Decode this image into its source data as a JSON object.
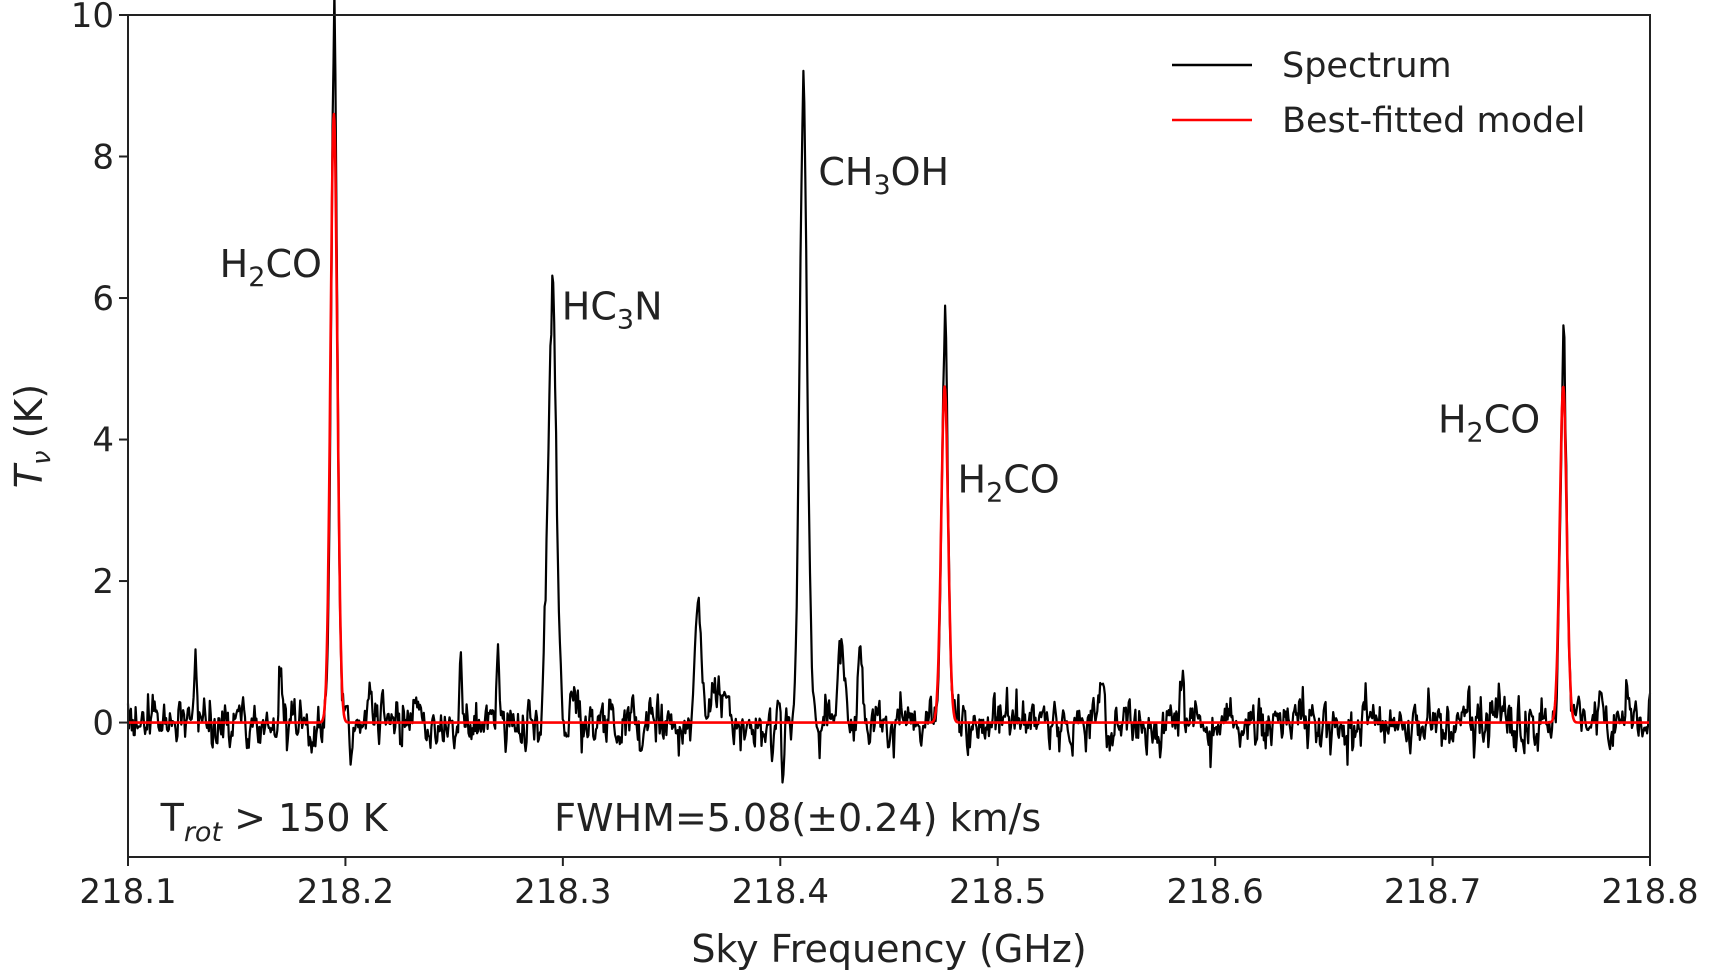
{
  "chart_data": {
    "type": "line",
    "title": "",
    "xlabel": "Sky Frequency (GHz)",
    "ylabel": {
      "symbol": "T",
      "subscript": "ν",
      "unit": " (K)"
    },
    "xlim": [
      218.1,
      218.8
    ],
    "ylim": [
      -1.9,
      10
    ],
    "xticks": [
      218.1,
      218.2,
      218.3,
      218.4,
      218.5,
      218.6,
      218.7,
      218.8
    ],
    "xtick_labels": [
      "218.1",
      "218.2",
      "218.3",
      "218.4",
      "218.5",
      "218.6",
      "218.7",
      "218.8"
    ],
    "yticks": [
      0,
      2,
      4,
      6,
      8,
      10
    ],
    "ytick_labels": [
      "0",
      "2",
      "4",
      "6",
      "8",
      "10"
    ],
    "grid": false,
    "legend": {
      "position": "top-right"
    },
    "series": [
      {
        "name": "Spectrum",
        "color": "#000000",
        "noise_rms": 0.15,
        "peaks": [
          {
            "x": 218.131,
            "y": 0.9,
            "fwhm_ghz": 0.0012
          },
          {
            "x": 218.17,
            "y": 0.75,
            "fwhm_ghz": 0.0014
          },
          {
            "x": 218.1947,
            "y": 9.35,
            "fwhm_ghz": 0.0032
          },
          {
            "x": 218.253,
            "y": 1.1,
            "fwhm_ghz": 0.0013
          },
          {
            "x": 218.27,
            "y": 0.8,
            "fwhm_ghz": 0.0015
          },
          {
            "x": 218.2949,
            "y": 5.75,
            "fwhm_ghz": 0.0045
          },
          {
            "x": 218.362,
            "y": 1.35,
            "fwhm_ghz": 0.0035
          },
          {
            "x": 218.372,
            "y": 0.55,
            "fwhm_ghz": 0.006
          },
          {
            "x": 218.4105,
            "y": 8.2,
            "fwhm_ghz": 0.004
          },
          {
            "x": 218.428,
            "y": 1.0,
            "fwhm_ghz": 0.004
          },
          {
            "x": 218.4366,
            "y": 1.1,
            "fwhm_ghz": 0.0025
          },
          {
            "x": 218.4756,
            "y": 5.1,
            "fwhm_ghz": 0.0032
          },
          {
            "x": 218.548,
            "y": 0.6,
            "fwhm_ghz": 0.003
          },
          {
            "x": 218.585,
            "y": 0.6,
            "fwhm_ghz": 0.0015
          },
          {
            "x": 218.7601,
            "y": 4.9,
            "fwhm_ghz": 0.0032
          }
        ],
        "dips": [
          {
            "x": 218.401,
            "y": -0.75,
            "fwhm_ghz": 0.0012
          }
        ]
      },
      {
        "name": "Best-fitted model",
        "color": "#ff0000",
        "fwhm_kms": 5.08,
        "peaks": [
          {
            "x": 218.1947,
            "y": 8.6
          },
          {
            "x": 218.4756,
            "y": 4.75
          },
          {
            "x": 218.7601,
            "y": 4.75
          }
        ]
      }
    ],
    "line_labels": [
      {
        "base": "H",
        "sub": "2",
        "rest": "CO",
        "x": 218.1947,
        "y": 6.3,
        "anchor": "end"
      },
      {
        "base": "HC",
        "sub": "3",
        "rest": "N",
        "x": 218.2995,
        "y": 5.7,
        "anchor": "start"
      },
      {
        "base": "CH",
        "sub": "3",
        "rest": "OH",
        "x": 218.4175,
        "y": 7.6,
        "anchor": "start"
      },
      {
        "base": "H",
        "sub": "2",
        "rest": "CO",
        "x": 218.4815,
        "y": 3.25,
        "anchor": "start"
      },
      {
        "base": "H",
        "sub": "2",
        "rest": "CO",
        "x": 218.755,
        "y": 4.1,
        "anchor": "end"
      }
    ],
    "annotations": [
      {
        "base": "T",
        "sub": "rot",
        "rest": " > 150 K",
        "x": 218.115,
        "y": -1.35
      },
      {
        "text": "FWHM=5.08(±0.24) km/s",
        "x": 218.296,
        "y": -1.35
      }
    ]
  }
}
